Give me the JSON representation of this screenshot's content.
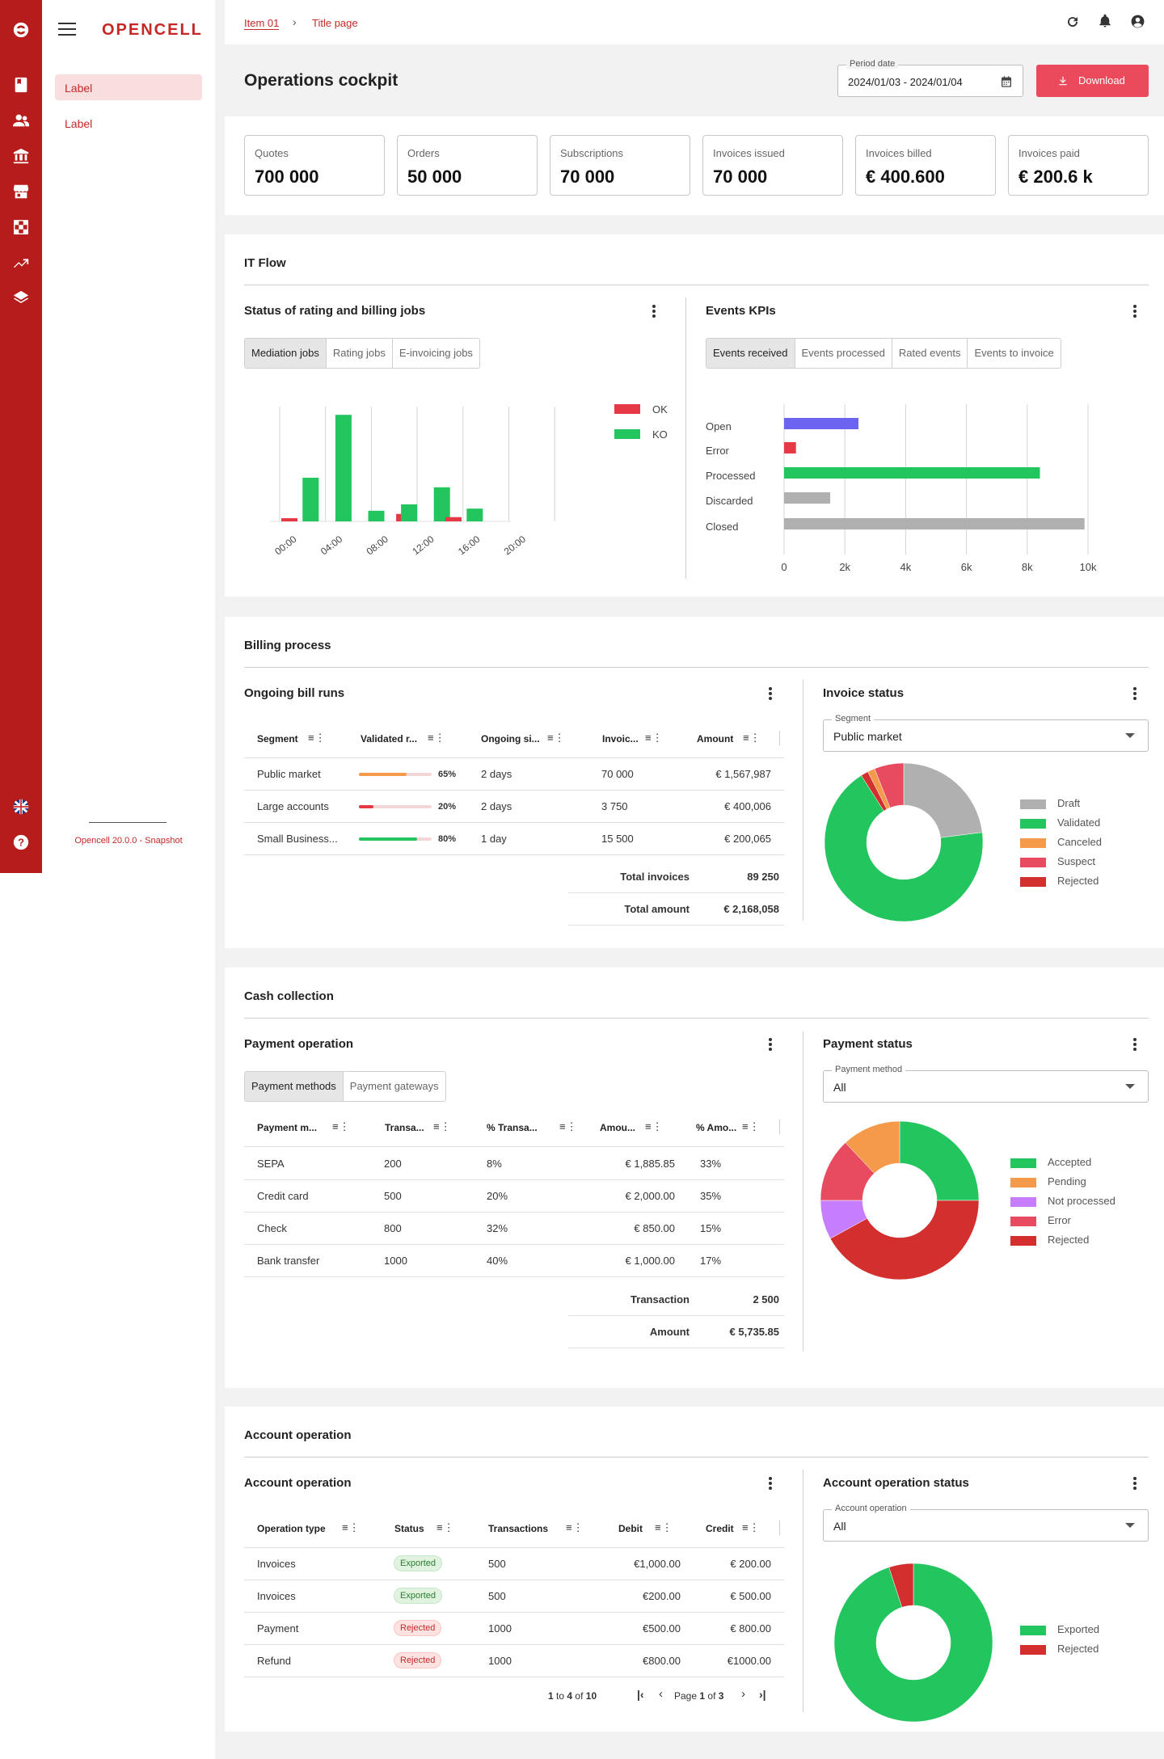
{
  "app": {
    "logo_text": "OPENCELL",
    "version": "Opencell 20.0.0 - Snapshot"
  },
  "sidenav": {
    "items": [
      {
        "label": "Label",
        "active": true
      },
      {
        "label": "Label",
        "active": false
      }
    ]
  },
  "rail_icons": [
    "logo-icon",
    "book-icon",
    "users-icon",
    "bank-icon",
    "store-icon",
    "checker-icon",
    "trending-icon",
    "layers-icon",
    "flag-uk-icon",
    "help-icon"
  ],
  "header": {
    "breadcrumb": [
      "Item 01",
      "Title page"
    ],
    "title": "Operations cockpit",
    "period": {
      "label": "Period date",
      "value": "2024/01/03 - 2024/01/04"
    },
    "download_label": "Download"
  },
  "kpis": [
    {
      "label": "Quotes",
      "value": "700 000"
    },
    {
      "label": "Orders",
      "value": "50 000"
    },
    {
      "label": "Subscriptions",
      "value": "70 000"
    },
    {
      "label": "Invoices issued",
      "value": "70 000"
    },
    {
      "label": "Invoices billed",
      "value": "€ 400.600"
    },
    {
      "label": "Invoices paid",
      "value": "€ 200.6 k"
    }
  ],
  "it_flow": {
    "title": "IT Flow",
    "jobs": {
      "title": "Status of rating and billing jobs",
      "tabs": [
        "Mediation jobs",
        "Rating jobs",
        "E-invoicing jobs"
      ],
      "active_tab": 0
    },
    "events": {
      "title": "Events KPIs",
      "tabs": [
        "Events received",
        "Events processed",
        "Rated events",
        "Events to invoice"
      ],
      "active_tab": 0
    }
  },
  "billing": {
    "title": "Billing process",
    "runs": {
      "title": "Ongoing bill runs",
      "columns": [
        "Segment",
        "Validated r...",
        "Ongoing si...",
        "Invoic...",
        "Amount"
      ],
      "rows": [
        {
          "segment": "Public market",
          "validated": "65%",
          "validated_frac": 0.65,
          "color": "#f59a4a",
          "ongoing": "2 days",
          "invoices": "70 000",
          "amount": "€ 1,567,987"
        },
        {
          "segment": "Large accounts",
          "validated": "20%",
          "validated_frac": 0.2,
          "color": "#e53945",
          "ongoing": "2 days",
          "invoices": "3 750",
          "amount": "€ 400,006"
        },
        {
          "segment": "Small  Business...",
          "validated": "80%",
          "validated_frac": 0.8,
          "color": "#22c55e",
          "ongoing": "1 day",
          "invoices": "15 500",
          "amount": "€ 200,065"
        }
      ],
      "totals": [
        {
          "label": "Total invoices",
          "value": "89 250"
        },
        {
          "label": "Total amount",
          "value": "€ 2,168,058"
        }
      ]
    },
    "invoice_status": {
      "title": "Invoice status",
      "filter": {
        "label": "Segment",
        "value": "Public market"
      },
      "legend": [
        {
          "label": "Draft",
          "color": "#b0b0b0"
        },
        {
          "label": "Validated",
          "color": "#22c55e"
        },
        {
          "label": "Canceled",
          "color": "#f59a4a"
        },
        {
          "label": "Suspect",
          "color": "#e84a5f"
        },
        {
          "label": "Rejected",
          "color": "#d32f2f"
        }
      ]
    }
  },
  "cash": {
    "title": "Cash collection",
    "payment_operation": {
      "title": "Payment operation",
      "tabs": [
        "Payment methods",
        "Payment gateways"
      ],
      "active_tab": 0,
      "columns": [
        "Payment m...",
        "Transa...",
        "% Transa...",
        "Amou...",
        "% Amo..."
      ],
      "rows": [
        {
          "method": "SEPA",
          "trans": "200",
          "trans_pct": "8%",
          "amount": "€ 1,885.85",
          "amount_pct": "33%"
        },
        {
          "method": "Credit card",
          "trans": "500",
          "trans_pct": "20%",
          "amount": "€ 2,000.00",
          "amount_pct": "35%"
        },
        {
          "method": "Check",
          "trans": "800",
          "trans_pct": "32%",
          "amount": "€ 850.00",
          "amount_pct": "15%"
        },
        {
          "method": "Bank transfer",
          "trans": "1000",
          "trans_pct": "40%",
          "amount": "€ 1,000.00",
          "amount_pct": "17%"
        }
      ],
      "totals": [
        {
          "label": "Transaction",
          "value": "2 500"
        },
        {
          "label": "Amount",
          "value": "€ 5,735.85"
        }
      ]
    },
    "payment_status": {
      "title": "Payment status",
      "filter": {
        "label": "Payment method",
        "value": "All"
      },
      "legend": [
        {
          "label": "Accepted",
          "color": "#22c55e"
        },
        {
          "label": "Pending",
          "color": "#f59a4a"
        },
        {
          "label": "Not processed",
          "color": "#c77dff"
        },
        {
          "label": "Error",
          "color": "#e84a5f"
        },
        {
          "label": "Rejected",
          "color": "#d32f2f"
        }
      ]
    }
  },
  "account": {
    "title": "Account operation",
    "table": {
      "title": "Account operation",
      "columns": [
        "Operation type",
        "Status",
        "Transactions",
        "Debit",
        "Credit"
      ],
      "rows": [
        {
          "type": "Invoices",
          "status": "Exported",
          "ok": true,
          "trans": "500",
          "debit": "€1,000.00",
          "credit": "€ 200.00"
        },
        {
          "type": "Invoices",
          "status": "Exported",
          "ok": true,
          "trans": "500",
          "debit": "€200.00",
          "credit": "€ 500.00"
        },
        {
          "type": "Payment",
          "status": "Rejected",
          "ok": false,
          "trans": "1000",
          "debit": "€500.00",
          "credit": "€ 800.00"
        },
        {
          "type": "Refund",
          "status": "Rejected",
          "ok": false,
          "trans": "1000",
          "debit": "€800.00",
          "credit": "€1000.00"
        }
      ],
      "pagination": {
        "from": "1",
        "to_word": "to",
        "to": "4",
        "of_word": "of",
        "total": "10",
        "page_word": "Page",
        "page": "1",
        "pages": "3"
      }
    },
    "status": {
      "title": "Account operation status",
      "filter": {
        "label": "Account operation",
        "value": "All"
      },
      "legend": [
        {
          "label": "Exported",
          "color": "#22c55e"
        },
        {
          "label": "Rejected",
          "color": "#d32f2f"
        }
      ]
    }
  },
  "chart_data": [
    {
      "type": "bar",
      "categories": [
        "00:00",
        "02:00",
        "04:00",
        "06:00",
        "08:00",
        "10:00",
        "12:00",
        "14:00",
        "16:00",
        "18:00",
        "20:00",
        "22:00"
      ],
      "tick_labels": [
        "00:00",
        "04:00",
        "08:00",
        "12:00",
        "16:00",
        "20:00"
      ],
      "series": [
        {
          "name": "OK",
          "color": "#e53945",
          "values": [
            3,
            0,
            0,
            0,
            0,
            0,
            0,
            7,
            0,
            0,
            4,
            0
          ]
        },
        {
          "name": "KO",
          "color": "#22c55e",
          "values": [
            0,
            41,
            0,
            100,
            0,
            10,
            0,
            16,
            0,
            32,
            0,
            12
          ]
        }
      ],
      "legend_position": "top-right",
      "ylim": [
        0,
        110
      ]
    },
    {
      "type": "bar",
      "orientation": "horizontal",
      "categories": [
        "Open",
        "Error",
        "Processed",
        "Discarded",
        "Closed"
      ],
      "values": [
        2500,
        400,
        8600,
        1550,
        10100
      ],
      "colors": [
        "#6c63f0",
        "#e53945",
        "#22c55e",
        "#b0b0b0",
        "#b0b0b0"
      ],
      "xticks": [
        "0",
        "2k",
        "4k",
        "6k",
        "8k",
        "10k"
      ],
      "xlim": [
        0,
        10000
      ]
    },
    {
      "type": "pie",
      "donut": true,
      "labels": [
        "Draft",
        "Validated",
        "Canceled",
        "Suspect",
        "Rejected"
      ],
      "values": [
        23,
        68,
        1.5,
        6,
        1.5
      ],
      "start_angle_deg": 0,
      "order": [
        "Draft",
        "Validated",
        "Rejected",
        "Canceled",
        "Suspect"
      ],
      "colors": [
        "#b0b0b0",
        "#22c55e",
        "#f59a4a",
        "#e84a5f",
        "#d32f2f"
      ]
    },
    {
      "type": "pie",
      "donut": true,
      "labels": [
        "Accepted",
        "Pending",
        "Not processed",
        "Error",
        "Rejected"
      ],
      "values": [
        25,
        12,
        8,
        13,
        42
      ],
      "order": [
        "Accepted",
        "Rejected",
        "Not processed",
        "Error",
        "Pending"
      ],
      "colors": [
        "#22c55e",
        "#f59a4a",
        "#c77dff",
        "#e84a5f",
        "#d32f2f"
      ]
    },
    {
      "type": "pie",
      "donut": true,
      "labels": [
        "Exported",
        "Rejected"
      ],
      "values": [
        95,
        5
      ],
      "order": [
        "Exported",
        "Rejected"
      ],
      "colors": [
        "#22c55e",
        "#d32f2f"
      ]
    }
  ]
}
